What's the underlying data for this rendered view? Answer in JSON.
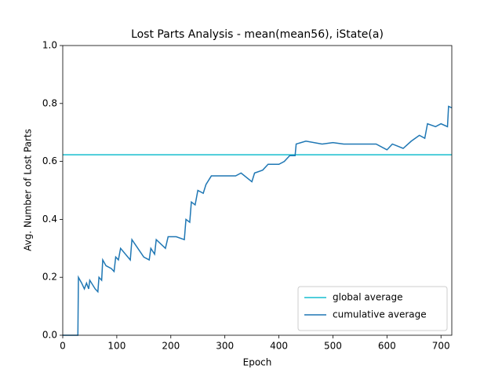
{
  "chart_data": {
    "type": "line",
    "title": "Lost Parts Analysis - mean(mean56), iState(a)",
    "x_label": "Epoch",
    "y_label": "Avg. Number of Lost Parts",
    "xlim": [
      0,
      720
    ],
    "xticks": [
      0,
      100,
      200,
      300,
      400,
      500,
      600,
      700
    ],
    "ylim": [
      0,
      1
    ],
    "yticks": [
      {
        "value": 0,
        "label": "0.0"
      },
      0.2,
      0.4,
      0.6,
      0.8,
      {
        "value": 1,
        "label": "1.0"
      }
    ],
    "legend": "lower right",
    "reference_lines": [
      {
        "name": "global average",
        "color": "#17becf",
        "value": 0.623
      }
    ],
    "series": [
      {
        "name": "cumulative average",
        "color": "#1f77b4",
        "x": [
          0,
          28,
          29,
          35,
          40,
          44,
          48,
          50,
          60,
          65,
          67,
          72,
          74,
          80,
          90,
          95,
          98,
          103,
          107,
          125,
          128,
          150,
          160,
          163,
          170,
          173,
          190,
          195,
          210,
          225,
          228,
          235,
          238,
          245,
          250,
          260,
          265,
          275,
          290,
          300,
          320,
          330,
          350,
          355,
          370,
          380,
          400,
          410,
          420,
          430,
          432,
          450,
          480,
          500,
          520,
          550,
          580,
          600,
          610,
          630,
          645,
          660,
          670,
          675,
          690,
          700,
          712,
          714,
          720
        ],
        "values": [
          0,
          0,
          0.2,
          0.18,
          0.16,
          0.18,
          0.16,
          0.19,
          0.16,
          0.15,
          0.2,
          0.19,
          0.26,
          0.24,
          0.23,
          0.22,
          0.27,
          0.26,
          0.3,
          0.26,
          0.33,
          0.27,
          0.26,
          0.3,
          0.28,
          0.33,
          0.3,
          0.34,
          0.34,
          0.33,
          0.4,
          0.39,
          0.46,
          0.45,
          0.5,
          0.49,
          0.52,
          0.55,
          0.55,
          0.55,
          0.55,
          0.56,
          0.53,
          0.56,
          0.57,
          0.59,
          0.59,
          0.6,
          0.62,
          0.62,
          0.66,
          0.67,
          0.66,
          0.665,
          0.66,
          0.66,
          0.66,
          0.64,
          0.66,
          0.645,
          0.67,
          0.69,
          0.68,
          0.73,
          0.72,
          0.73,
          0.72,
          0.79,
          0.785
        ]
      }
    ]
  }
}
